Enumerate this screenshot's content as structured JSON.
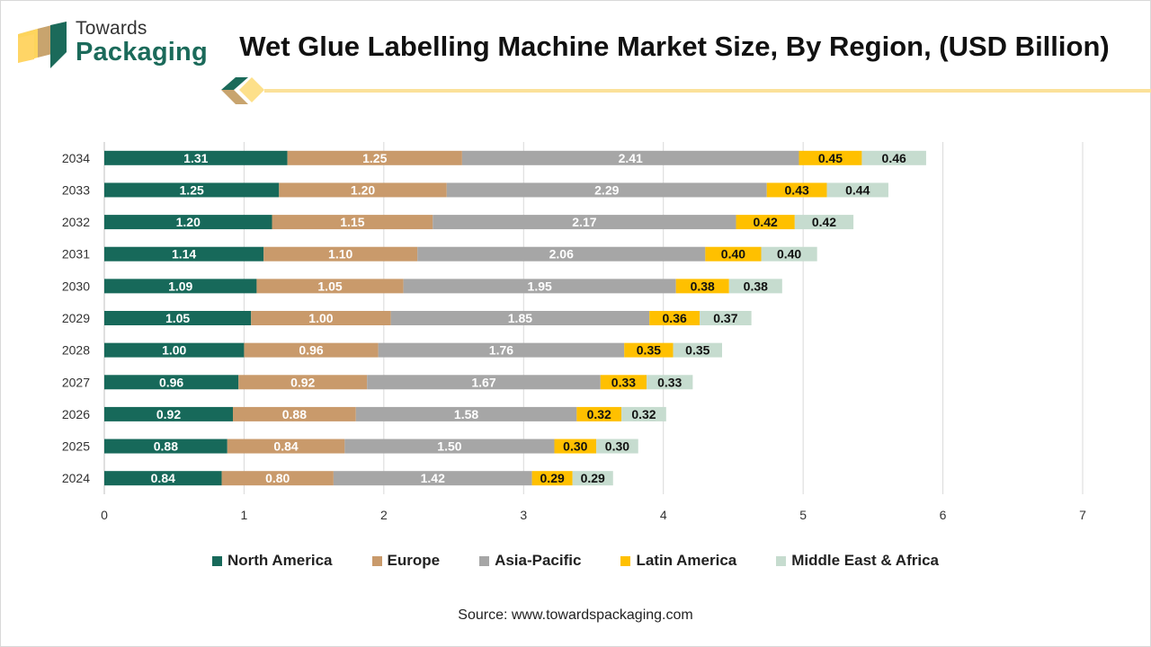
{
  "brand": {
    "line1": "Towards",
    "line2": "Packaging"
  },
  "source": "Source: www.towardspackaging.com",
  "colors": {
    "north_america": "#17695a",
    "europe": "#c99a6b",
    "asia_pacific": "#a6a6a6",
    "latin_america": "#ffc000",
    "mea": "#c6dccf",
    "brand_green": "#1b6a5a",
    "brand_tan": "#c8a46e",
    "accent_yellow": "#fbe19a"
  },
  "chart_data": {
    "type": "bar",
    "orientation": "horizontal",
    "stacked": true,
    "title": "Wet Glue Labelling Machine Market Size, By Region, (USD Billion)",
    "categories": [
      "2034",
      "2033",
      "2032",
      "2031",
      "2030",
      "2029",
      "2028",
      "2027",
      "2026",
      "2025",
      "2024"
    ],
    "series": [
      {
        "name": "North America",
        "color": "#17695a",
        "values": [
          1.31,
          1.25,
          1.2,
          1.14,
          1.09,
          1.05,
          1.0,
          0.96,
          0.92,
          0.88,
          0.84
        ]
      },
      {
        "name": "Europe",
        "color": "#c99a6b",
        "values": [
          1.25,
          1.2,
          1.15,
          1.1,
          1.05,
          1.0,
          0.96,
          0.92,
          0.88,
          0.84,
          0.8
        ]
      },
      {
        "name": "Asia-Pacific",
        "color": "#a6a6a6",
        "values": [
          2.41,
          2.29,
          2.17,
          2.06,
          1.95,
          1.85,
          1.76,
          1.67,
          1.58,
          1.5,
          1.42
        ]
      },
      {
        "name": "Latin America",
        "color": "#ffc000",
        "values": [
          0.45,
          0.43,
          0.42,
          0.4,
          0.38,
          0.36,
          0.35,
          0.33,
          0.32,
          0.3,
          0.29
        ]
      },
      {
        "name": "Middle East & Africa",
        "color": "#c6dccf",
        "values": [
          0.46,
          0.44,
          0.42,
          0.4,
          0.38,
          0.37,
          0.35,
          0.33,
          0.32,
          0.3,
          0.29
        ]
      }
    ],
    "xlim": [
      0,
      7
    ],
    "xticks": [
      0,
      1,
      2,
      3,
      4,
      5,
      6,
      7
    ],
    "grid": true,
    "legend_position": "bottom"
  }
}
